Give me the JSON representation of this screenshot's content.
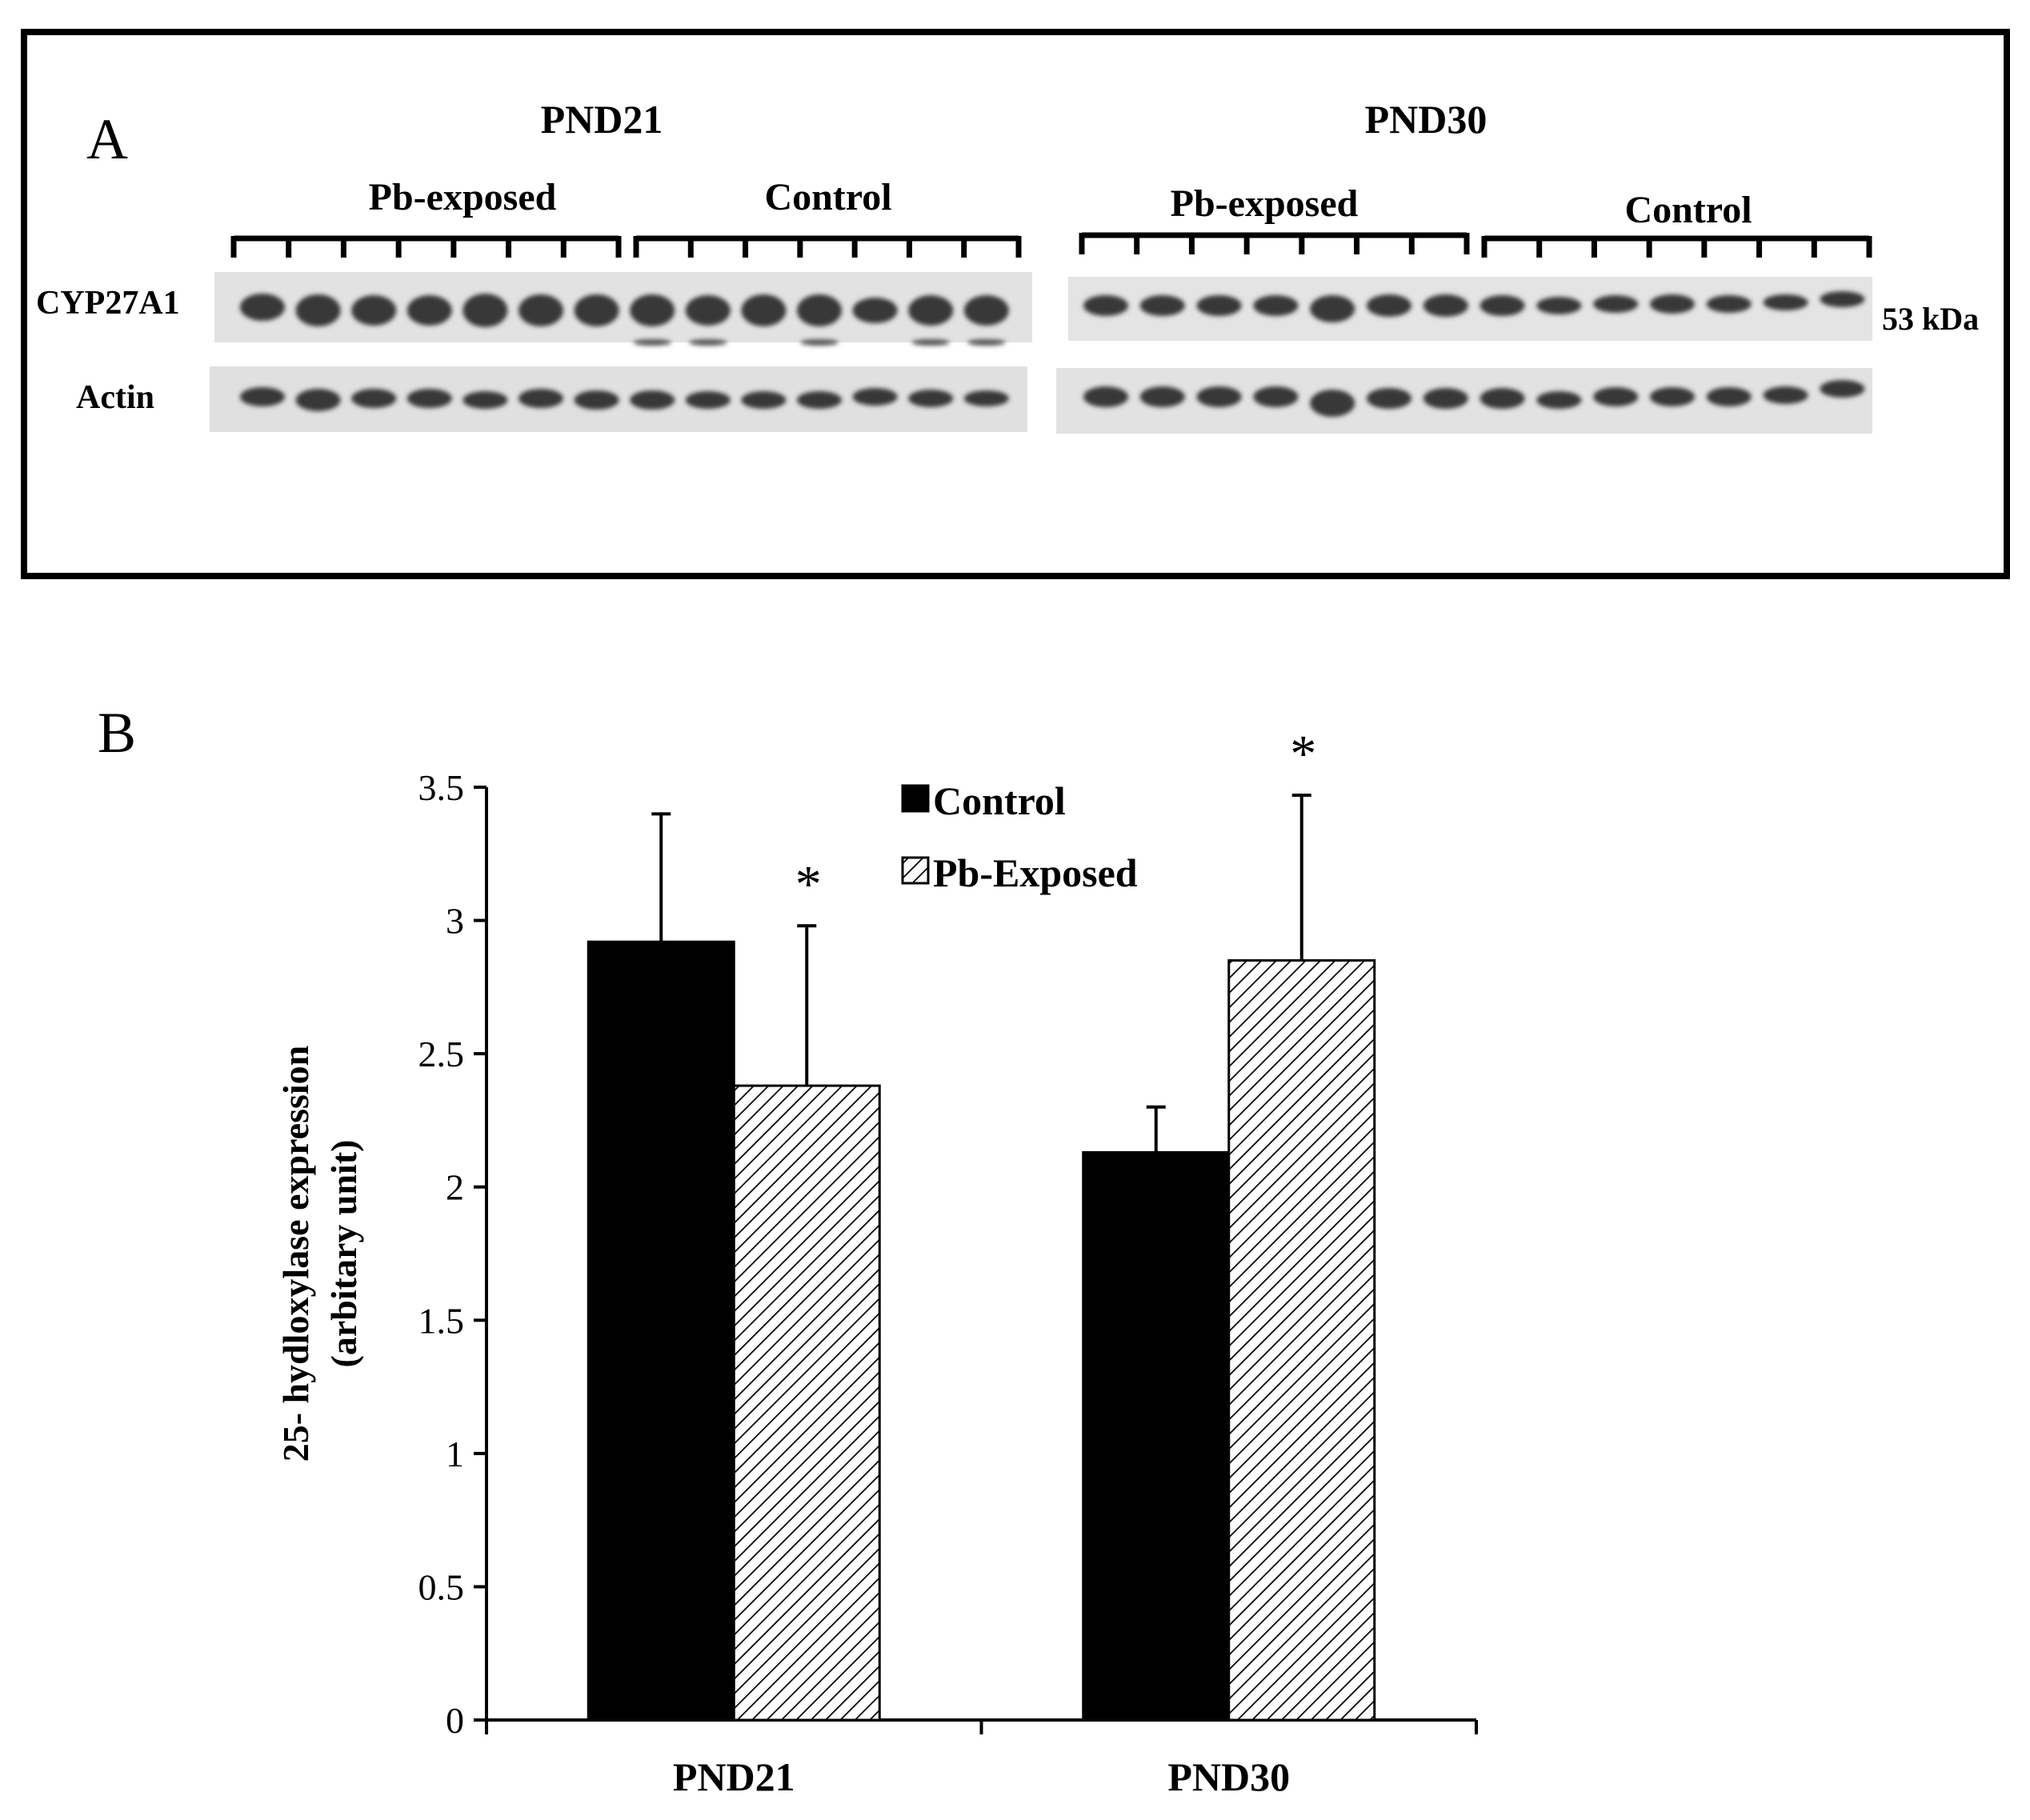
{
  "panel_a": {
    "panel_label": "A",
    "groups": [
      {
        "title": "PND21",
        "sub": [
          "Pb-exposed",
          "Control"
        ]
      },
      {
        "title": "PND30",
        "sub": [
          "Pb-exposed",
          "Control"
        ]
      }
    ],
    "row_labels": [
      "CYP27A1",
      "Actin"
    ],
    "marker": "53 kDa",
    "lanes_per_subgroup": 7
  },
  "panel_b": {
    "panel_label": "B",
    "significance_mark": "*"
  },
  "chart_data": {
    "type": "bar",
    "categories": [
      "PND21",
      "PND30"
    ],
    "series": [
      {
        "name": "Control",
        "values": [
          2.92,
          2.13
        ],
        "errors": [
          0.48,
          0.17
        ],
        "fill": "#000000"
      },
      {
        "name": "Pb-Exposed",
        "values": [
          2.38,
          2.85
        ],
        "errors": [
          0.6,
          0.62
        ],
        "fill": "hatch"
      }
    ],
    "significant": [
      [
        false,
        false
      ],
      [
        true,
        true
      ]
    ],
    "ylabel": [
      "25- hydloxylase expression",
      "(arbitary unit)"
    ],
    "ylim": [
      0,
      3.5
    ],
    "yticks": [
      "0",
      "0.5",
      "1",
      "1.5",
      "2",
      "2.5",
      "3",
      "3.5"
    ],
    "grid": false,
    "legend": "top-center"
  }
}
